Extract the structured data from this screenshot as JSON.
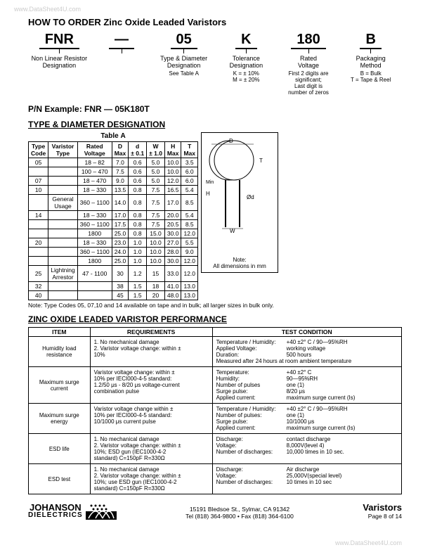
{
  "watermark_top": "www.DataSheet4U.com",
  "watermark_bottom": "www.DataSheet4U.com",
  "title": "HOW TO ORDER Zinc Oxide Leaded Varistors",
  "order": {
    "parts": [
      {
        "big": "FNR",
        "label": "Non Linear Resistor\nDesignation",
        "sub": ""
      },
      {
        "big": "—",
        "label": "",
        "sub": ""
      },
      {
        "big": "05",
        "label": "Type & Diameter\nDesignation",
        "sub": "See Table A"
      },
      {
        "big": "K",
        "label": "Tolerance\nDesignation",
        "sub": "K = ± 10%\nM = ± 20%"
      },
      {
        "big": "180",
        "label": "Rated\nVoltage",
        "sub": "First 2 digits are\nsignificant;\nLast digit is\nnumber of zeros"
      },
      {
        "big": "B",
        "label": "Packaging\nMethod",
        "sub": "B = Bulk\nT = Tape & Reel"
      }
    ]
  },
  "pn_example_label": "P/N Example:",
  "pn_example_value": "FNR — 05K180T",
  "type_diam_head": "TYPE & DIAMETER DESIGNATION",
  "table_a_caption": "Table A",
  "table_a": {
    "headers": [
      "Type\nCode",
      "Varistor\nType",
      "Rated\nVoltage",
      "D\nMax",
      "d\n± 0.1",
      "W\n± 1.0",
      "H\nMax",
      "T\nMax"
    ],
    "rows": [
      [
        "05",
        "",
        "18 – 82",
        "7.0",
        "0.6",
        "5.0",
        "10.0",
        "3.5"
      ],
      [
        "",
        "",
        "100 – 470",
        "7.5",
        "0.6",
        "5.0",
        "10.0",
        "6.0"
      ],
      [
        "07",
        "",
        "18 – 470",
        "9.0",
        "0.6",
        "5.0",
        "12.0",
        "6.0"
      ],
      [
        "10",
        "",
        "18 – 330",
        "13.5",
        "0.8",
        "7.5",
        "16.5",
        "5.4"
      ],
      [
        "",
        "General\nUsage",
        "360 – 1100",
        "14.0",
        "0.8",
        "7.5",
        "17.0",
        "8.5"
      ],
      [
        "14",
        "",
        "18 – 330",
        "17.0",
        "0.8",
        "7.5",
        "20.0",
        "5.4"
      ],
      [
        "",
        "",
        "360 – 1100",
        "17.5",
        "0.8",
        "7.5",
        "20.5",
        "8.5"
      ],
      [
        "",
        "",
        "1800",
        "25.0",
        "0.8",
        "15.0",
        "30.0",
        "12.0"
      ],
      [
        "20",
        "",
        "18 – 330",
        "23.0",
        "1.0",
        "10.0",
        "27.0",
        "5.5"
      ],
      [
        "",
        "",
        "360 – 1100",
        "24.0",
        "1.0",
        "10.0",
        "28.0",
        "9.0"
      ],
      [
        "",
        "",
        "1800",
        "25.0",
        "1.0",
        "10.0",
        "30.0",
        "12.0"
      ],
      [
        "25",
        "Lightning\nArrestor",
        "47 - 1100",
        "30",
        "1.2",
        "15",
        "33.0",
        "12.0"
      ],
      [
        "32",
        "",
        "",
        "38",
        "1.5",
        "18",
        "41.0",
        "13.0"
      ],
      [
        "40",
        "",
        "",
        "45",
        "1.5",
        "20",
        "48.0",
        "13.0"
      ]
    ]
  },
  "diag_note": "Note:\nAll dimensions in mm",
  "note_line": "Note:   Type Codes 05, 07,10 and 14 available on tape and in bulk; all larger sizes in bulk only.",
  "perf_head": "ZINC OXIDE LEADED VARISTOR PERFORMANCE",
  "perf_headers": [
    "ITEM",
    "REQUIREMENTS",
    "TEST CONDITION"
  ],
  "perf_rows": [
    {
      "item": "Humidity load\nresistance",
      "req": "1. No mechanical damage\n2. Varistor voltage change: within ±\n   10%",
      "cond": [
        [
          "Temperature / Humidity:",
          "+40 ±2° C / 90—95%RH"
        ],
        [
          "Applied Voltage:",
          "working voltage"
        ],
        [
          "Duration:",
          "500 hours"
        ],
        [
          "Measured after 24 hours at room ambient temperature",
          ""
        ]
      ]
    },
    {
      "item": "Maximum surge\ncurrent",
      "req": "Varistor voltage change: within ±\n10% per IECI000-4-5 standard:\n1.2/50 μs - 8/20 μs voltage-current\ncombination pulse",
      "cond": [
        [
          "Temperature:",
          "+40 ±2° C"
        ],
        [
          "Humidity:",
          "90—95%RH"
        ],
        [
          "Number of pulses",
          "one (1)"
        ],
        [
          "Surge pulse:",
          "8/20 μs"
        ],
        [
          "Applied current:",
          "maximum surge current (Is)"
        ]
      ]
    },
    {
      "item": "Maximum surge\nenergy",
      "req": "Varistor voltage change within ±\n10% per IECI000-4-5 standard:\n10/1000 μs current pulse",
      "cond": [
        [
          "Temperature / Humidity:",
          "+40 ±2° C / 90—95%RH"
        ],
        [
          "Number of pulses:",
          "one (1)"
        ],
        [
          "Surge pulse:",
          "10/1000 μs"
        ],
        [
          "Applied current:",
          "maximum surge current (Is)"
        ]
      ]
    },
    {
      "item": "ESD life",
      "req": "1. No mechanical damage\n2. Varistor voltage change: within ±\n   10%; ESD gun (IEC1000-4-2\n   standard) C=150pF R=330Ω",
      "cond": [
        [
          "Discharge:",
          "contact discharge"
        ],
        [
          "Voltage:",
          "8,000V(level 4)"
        ],
        [
          "Number of discharges:",
          "10,000 times in 10 sec."
        ]
      ]
    },
    {
      "item": "ESD test",
      "req": "1. No mechanical damage\n2. Varistor voltage change: within ±\n   10%; use ESD gun (IEC1000-4-2\n   standard) C=150pF R=330Ω",
      "cond": [
        [
          "Discharge:",
          "Air discharge"
        ],
        [
          "Voltage:",
          "25,000V(special level)"
        ],
        [
          "Number of discharges:",
          "10 times in 10 sec"
        ]
      ]
    }
  ],
  "footer": {
    "logo_main": "JOHANSON",
    "logo_sub": "DIELECTRICS",
    "addr1": "15191 Bledsoe St., Sylmar, CA 91342",
    "addr2": "Tel (818) 364-9800 • Fax (818) 364-6100",
    "right_title": "Varistors",
    "right_page": "Page 8 of  14"
  }
}
